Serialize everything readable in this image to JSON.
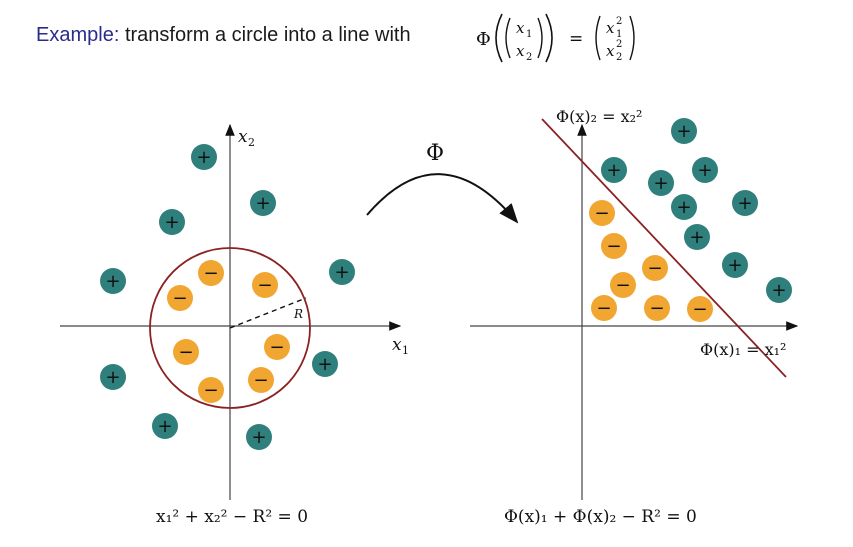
{
  "title": {
    "lead": "Example:",
    "rest": "transform a circle into a line with"
  },
  "mapping": {
    "phi": "Φ",
    "x1": "x",
    "x1_sub": "1",
    "x2": "x",
    "x2_sub": "2",
    "eq": "=",
    "sq": "2"
  },
  "left_plot": {
    "x_axis_label": "x",
    "x_axis_sub": "1",
    "y_axis_label": "x",
    "y_axis_sub": "2",
    "radius_label": "R",
    "equation": "x₁² + x₂² − R² = 0"
  },
  "arrow_label": "Φ",
  "right_plot": {
    "x_axis_label": "Φ(x)₁ = x₁²",
    "y_axis_label": "Φ(x)₂ = x₂²",
    "equation": "Φ(x)₁ + Φ(x)₂ − R² = 0"
  },
  "signs": {
    "plus": "+",
    "minus": "−"
  },
  "colors": {
    "plus_fill": "#2f7f7c",
    "minus_fill": "#f2a632",
    "circle_line": "#8b2222",
    "axis": "#444444"
  }
}
